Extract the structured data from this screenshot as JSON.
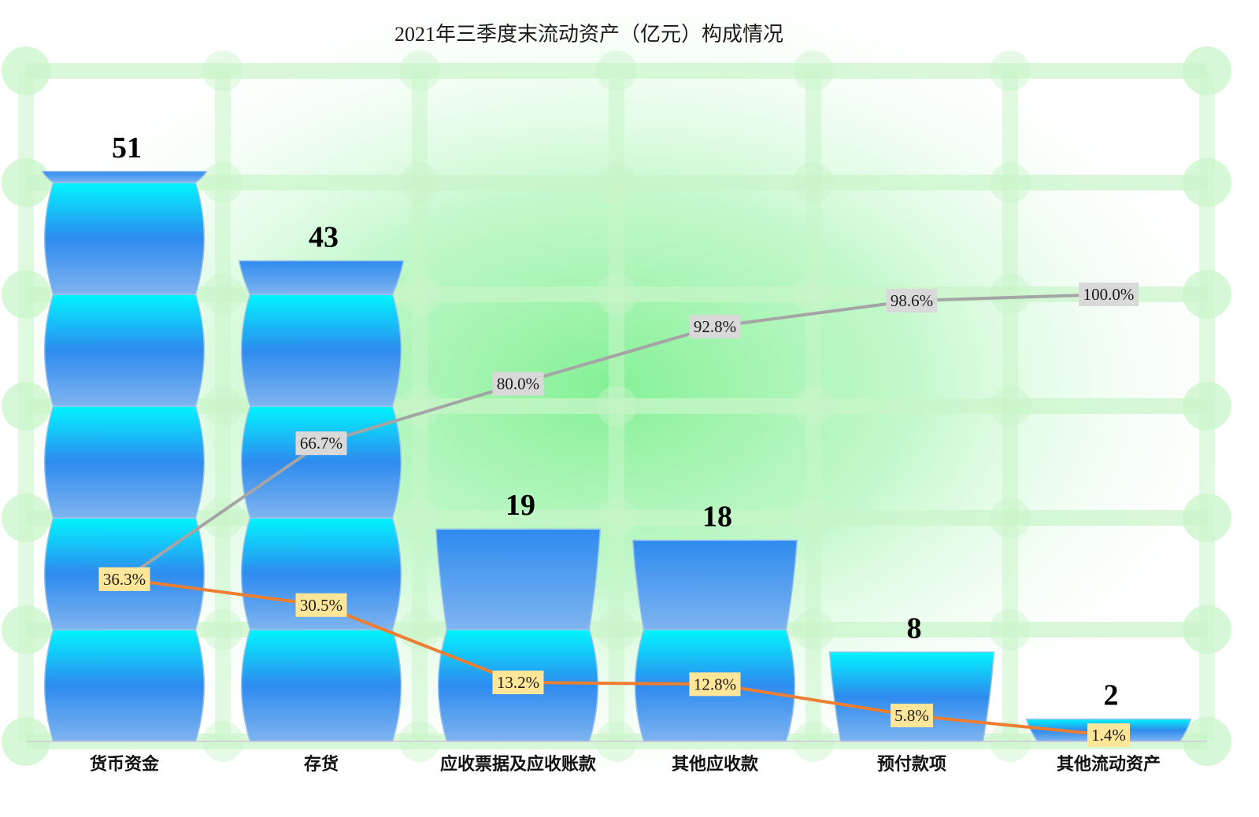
{
  "chart_data": {
    "type": "bar",
    "title": "2021年三季度末流动资产（亿元）构成情况",
    "categories": [
      "货币资金",
      "存货",
      "应收票据及应收账款",
      "其他应收款",
      "预付款项",
      "其他流动资产"
    ],
    "values": [
      51,
      43,
      19,
      18,
      8,
      2
    ],
    "value_labels": [
      "51",
      "43",
      "19",
      "18",
      "8",
      "2"
    ],
    "ylim": [
      0,
      60
    ],
    "grid": true,
    "legend": "none",
    "series": [
      {
        "type": "bar",
        "values": [
          51,
          43,
          19,
          18,
          8,
          2
        ]
      },
      {
        "type": "line",
        "axis": "secondary",
        "values": [
          36.3,
          30.5,
          13.2,
          12.8,
          5.8,
          1.4
        ],
        "labels": [
          "36.3%",
          "30.5%",
          "13.2%",
          "12.8%",
          "5.8%",
          "1.4%"
        ],
        "color": "#ED7D31",
        "label_bg": "#FFE699"
      },
      {
        "type": "line",
        "axis": "secondary",
        "values": [
          36.3,
          66.7,
          80.0,
          92.8,
          98.6,
          100.0
        ],
        "labels": [
          "36.3%",
          "66.7%",
          "80.0%",
          "92.8%",
          "98.6%",
          "100.0%"
        ],
        "color": "#A5A5A5",
        "label_bg": "#D9D9D9"
      }
    ],
    "secondary_ylim": [
      0,
      150
    ],
    "colors": {
      "bar_top": "#00F5FF",
      "bar_mid": "#2E8BEF",
      "bar_bottom": "#7FB4F0",
      "grid": "#C9F5C9",
      "glow": "#7DF08F"
    }
  }
}
